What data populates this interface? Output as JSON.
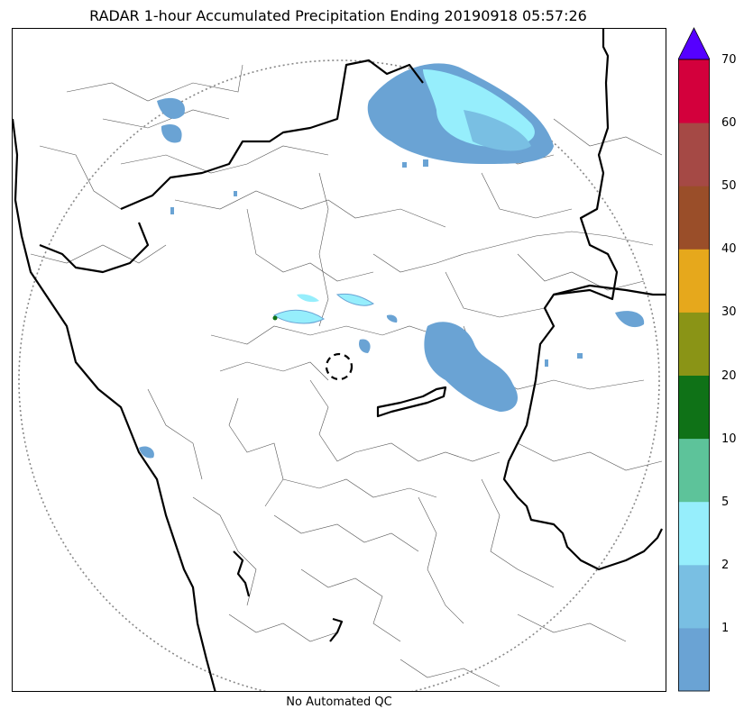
{
  "title": "RADAR 1-hour Accumulated Precipitation Ending 20190918 05:57:26",
  "footer": "No Automated QC",
  "colorbar": {
    "bins": [
      {
        "color": "#6aa3d4"
      },
      {
        "color": "#79bfe3"
      },
      {
        "color": "#96eefc"
      },
      {
        "color": "#5dc39a"
      },
      {
        "color": "#0f7217"
      },
      {
        "color": "#8a9416"
      },
      {
        "color": "#e6a81c"
      },
      {
        "color": "#9a4e29"
      },
      {
        "color": "#a54945"
      },
      {
        "color": "#d3003c"
      }
    ],
    "extend_color": "#5500ff",
    "ticks": [
      "1",
      "2",
      "5",
      "10",
      "20",
      "30",
      "40",
      "50",
      "60",
      "70"
    ]
  }
}
